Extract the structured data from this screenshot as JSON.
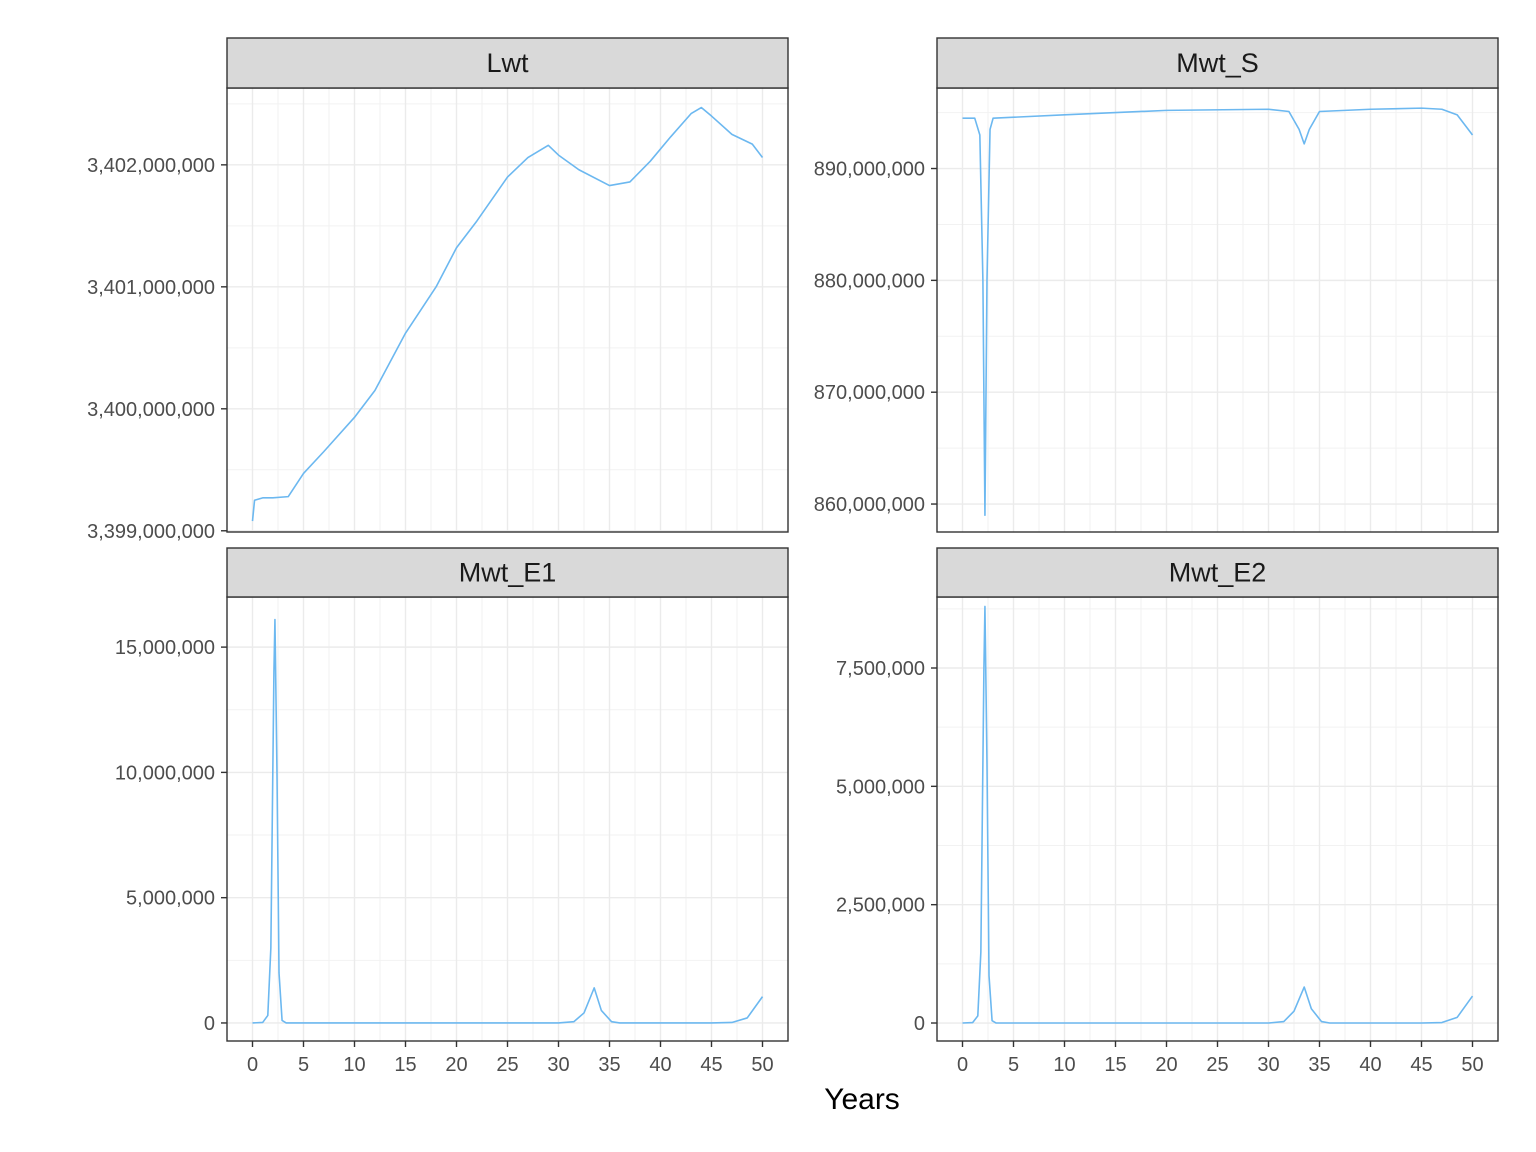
{
  "chart_data": {
    "type": "line",
    "layout": "facet-grid-2x2",
    "xlabel": "Years",
    "ylabel": "",
    "x_ticks": [
      0,
      5,
      10,
      15,
      20,
      25,
      30,
      35,
      40,
      45,
      50
    ],
    "xlim": [
      -2.5,
      52.5
    ],
    "grid": true,
    "line_color": "#6CB8F0",
    "panels": [
      {
        "name": "Lwt",
        "ylim": [
          3398990000,
          3402630000
        ],
        "y_ticks": [
          3399000000,
          3400000000,
          3401000000,
          3402000000
        ],
        "y_tick_labels": [
          "3,399,000,000",
          "3,400,000,000",
          "3,401,000,000",
          "3,402,000,000"
        ],
        "points": [
          [
            0,
            3399080000
          ],
          [
            0.2,
            3399250000
          ],
          [
            1,
            3399270000
          ],
          [
            2,
            3399270000
          ],
          [
            3.5,
            3399280000
          ],
          [
            5,
            3399470000
          ],
          [
            7,
            3399650000
          ],
          [
            10,
            3399930000
          ],
          [
            12,
            3400150000
          ],
          [
            15,
            3400620000
          ],
          [
            18,
            3401000000
          ],
          [
            20,
            3401320000
          ],
          [
            22,
            3401540000
          ],
          [
            25,
            3401900000
          ],
          [
            27,
            3402060000
          ],
          [
            29,
            3402160000
          ],
          [
            30,
            3402080000
          ],
          [
            32,
            3401960000
          ],
          [
            35,
            3401830000
          ],
          [
            37,
            3401860000
          ],
          [
            39,
            3402030000
          ],
          [
            41,
            3402230000
          ],
          [
            43,
            3402420000
          ],
          [
            44,
            3402470000
          ],
          [
            45,
            3402400000
          ],
          [
            47,
            3402250000
          ],
          [
            49,
            3402170000
          ],
          [
            50,
            3402060000
          ]
        ]
      },
      {
        "name": "Mwt_S",
        "ylim": [
          857500000,
          897200000
        ],
        "y_ticks": [
          860000000,
          870000000,
          880000000,
          890000000
        ],
        "y_tick_labels": [
          "860,000,000",
          "870,000,000",
          "880,000,000",
          "890,000,000"
        ],
        "points": [
          [
            0,
            894500000
          ],
          [
            1.2,
            894500000
          ],
          [
            1.7,
            893000000
          ],
          [
            2,
            880000000
          ],
          [
            2.2,
            859000000
          ],
          [
            2.4,
            880000000
          ],
          [
            2.7,
            893500000
          ],
          [
            3,
            894500000
          ],
          [
            10,
            894800000
          ],
          [
            20,
            895200000
          ],
          [
            30,
            895300000
          ],
          [
            32,
            895100000
          ],
          [
            33,
            893500000
          ],
          [
            33.5,
            892200000
          ],
          [
            34,
            893500000
          ],
          [
            35,
            895100000
          ],
          [
            40,
            895300000
          ],
          [
            45,
            895400000
          ],
          [
            47,
            895300000
          ],
          [
            48.5,
            894800000
          ],
          [
            50,
            893000000
          ]
        ]
      },
      {
        "name": "Mwt_E1",
        "ylim": [
          -720000,
          17000000
        ],
        "y_ticks": [
          0,
          5000000,
          10000000,
          15000000
        ],
        "y_tick_labels": [
          "0",
          "5,000,000",
          "10,000,000",
          "15,000,000"
        ],
        "points": [
          [
            0,
            0
          ],
          [
            1,
            20000
          ],
          [
            1.5,
            300000
          ],
          [
            1.8,
            3000000
          ],
          [
            2.1,
            14000000
          ],
          [
            2.2,
            16100000
          ],
          [
            2.4,
            10000000
          ],
          [
            2.6,
            2000000
          ],
          [
            2.9,
            100000
          ],
          [
            3.3,
            0
          ],
          [
            10,
            0
          ],
          [
            20,
            0
          ],
          [
            30,
            0
          ],
          [
            31.5,
            50000
          ],
          [
            32.5,
            400000
          ],
          [
            33.5,
            1400000
          ],
          [
            34.2,
            500000
          ],
          [
            35.2,
            50000
          ],
          [
            36,
            0
          ],
          [
            45,
            0
          ],
          [
            47,
            20000
          ],
          [
            48.5,
            200000
          ],
          [
            50,
            1050000
          ]
        ]
      },
      {
        "name": "Mwt_E2",
        "ylim": [
          -380000,
          9000000
        ],
        "y_ticks": [
          0,
          2500000,
          5000000,
          7500000
        ],
        "y_tick_labels": [
          "0",
          "2,500,000",
          "5,000,000",
          "7,500,000"
        ],
        "points": [
          [
            0,
            0
          ],
          [
            1,
            10000
          ],
          [
            1.5,
            150000
          ],
          [
            1.8,
            1500000
          ],
          [
            2.1,
            7500000
          ],
          [
            2.2,
            8800000
          ],
          [
            2.4,
            5500000
          ],
          [
            2.6,
            1000000
          ],
          [
            2.9,
            50000
          ],
          [
            3.3,
            0
          ],
          [
            10,
            0
          ],
          [
            20,
            0
          ],
          [
            30,
            0
          ],
          [
            31.5,
            30000
          ],
          [
            32.5,
            250000
          ],
          [
            33.5,
            760000
          ],
          [
            34.2,
            300000
          ],
          [
            35.2,
            30000
          ],
          [
            36,
            0
          ],
          [
            45,
            0
          ],
          [
            47,
            10000
          ],
          [
            48.5,
            120000
          ],
          [
            50,
            570000
          ]
        ]
      }
    ]
  }
}
